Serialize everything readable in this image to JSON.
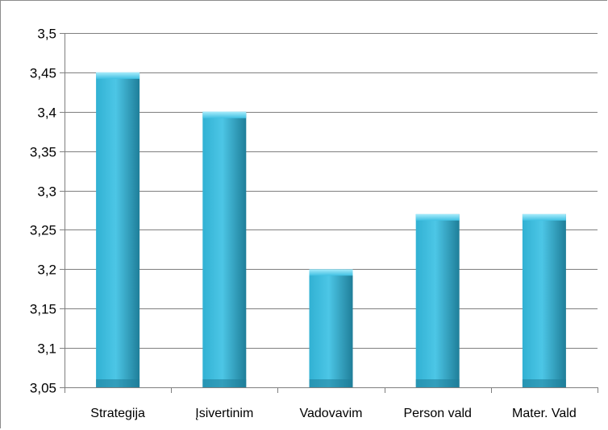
{
  "chart_data": {
    "type": "bar",
    "categories": [
      "Strategija",
      "Įsivertinim",
      "Vadovavim",
      "Person vald",
      "Mater. Vald"
    ],
    "values": [
      3.45,
      3.4,
      3.2,
      3.27,
      3.27
    ],
    "ylim": [
      3.05,
      3.5
    ],
    "yticks": [
      "3,05",
      "3,1",
      "3,15",
      "3,2",
      "3,25",
      "3,3",
      "3,35",
      "3,4",
      "3,45",
      "3,5"
    ],
    "grid": true,
    "legend": "none",
    "colors": {
      "bar_light": "#4cc6e6",
      "bar_mid": "#31b1d3",
      "bar_dark": "#1f7e99",
      "gridline": "#7f7f7f",
      "axis": "#7f7f7f"
    }
  }
}
